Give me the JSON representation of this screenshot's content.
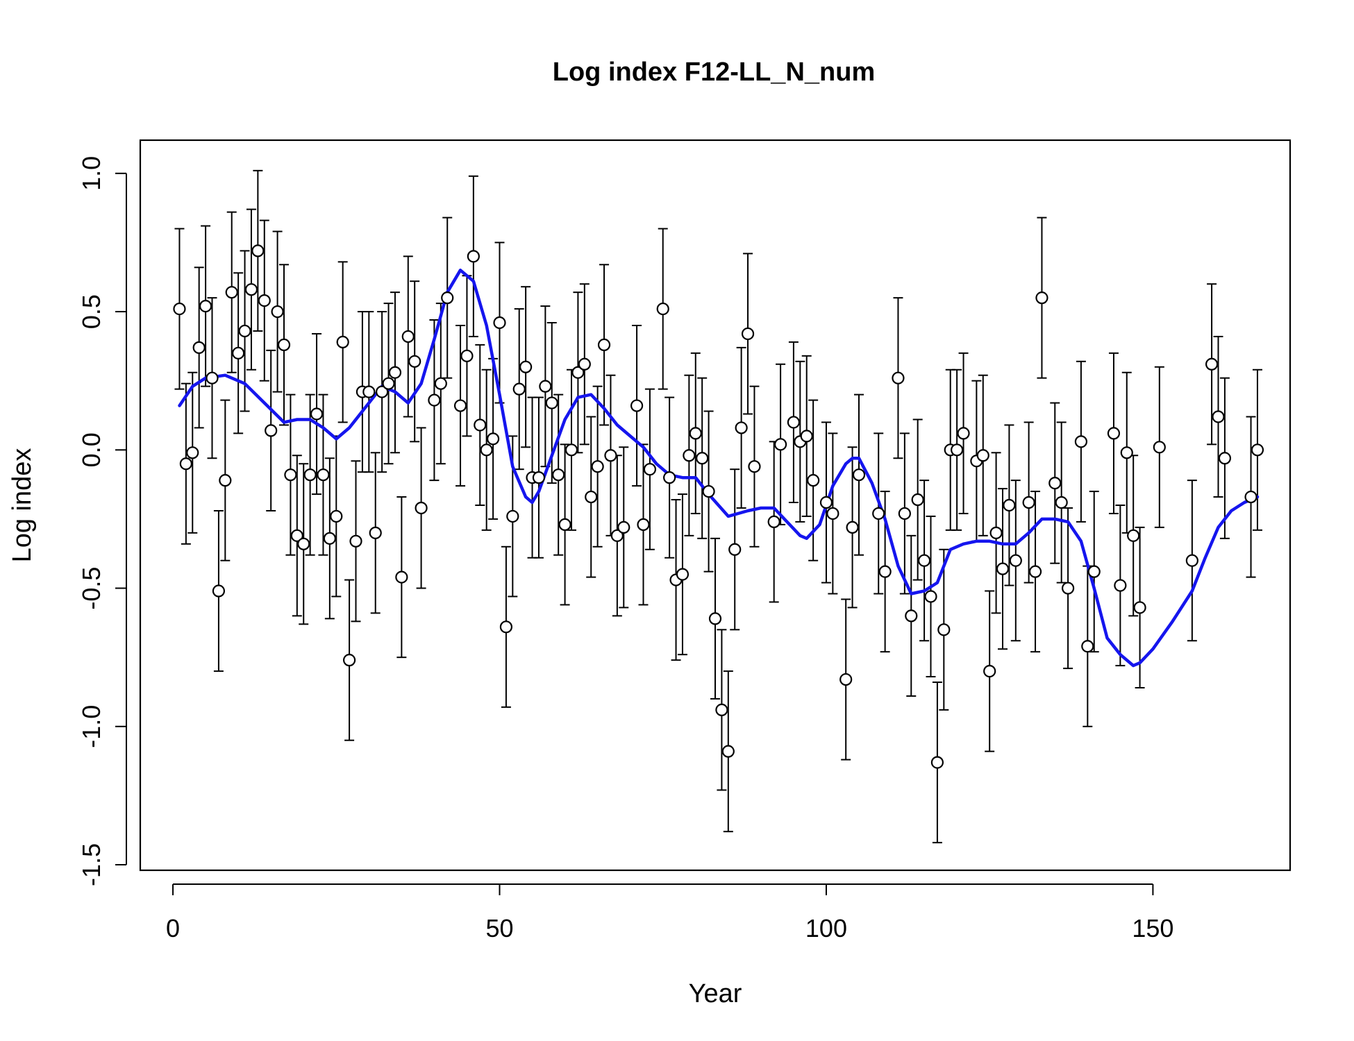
{
  "chart_data": {
    "type": "scatter",
    "title": "Log index F12-LL_N_num",
    "xlabel": "Year",
    "ylabel": "Log index",
    "xlim": [
      -5,
      171
    ],
    "ylim": [
      -1.52,
      1.12
    ],
    "x_ticks": [
      0,
      50,
      100,
      150
    ],
    "x_tick_labels": [
      "0",
      "50",
      "100",
      "150"
    ],
    "y_ticks": [
      -1.5,
      -1.0,
      -0.5,
      0.0,
      0.5,
      1.0
    ],
    "y_tick_labels": [
      "-1.5",
      "-1.0",
      "-0.5",
      "0.0",
      "0.5",
      "1.0"
    ],
    "grid": false,
    "legend": "none",
    "colors": {
      "points": "#000000",
      "fit": "#1515ee",
      "background": "#ffffff"
    },
    "series": [
      {
        "kind": "observed",
        "marker": "open-circle",
        "error_bars": true,
        "x": [
          1,
          2,
          3,
          4,
          5,
          6,
          7,
          8,
          9,
          10,
          11,
          12,
          13,
          14,
          15,
          16,
          17,
          18,
          19,
          20,
          21,
          22,
          23,
          24,
          25,
          26,
          27,
          28,
          29,
          30,
          31,
          32,
          33,
          34,
          35,
          36,
          37,
          38,
          40,
          41,
          42,
          44,
          45,
          46,
          47,
          48,
          49,
          50,
          51,
          52,
          53,
          54,
          55,
          56,
          57,
          58,
          59,
          60,
          61,
          62,
          63,
          64,
          65,
          66,
          67,
          68,
          69,
          71,
          72,
          73,
          75,
          76,
          77,
          78,
          79,
          80,
          81,
          82,
          83,
          84,
          85,
          86,
          87,
          88,
          89,
          92,
          93,
          95,
          96,
          97,
          98,
          100,
          101,
          103,
          104,
          105,
          108,
          109,
          111,
          112,
          113,
          114,
          115,
          116,
          117,
          118,
          119,
          120,
          121,
          123,
          124,
          125,
          126,
          127,
          128,
          129,
          131,
          132,
          133,
          135,
          136,
          137,
          139,
          140,
          141,
          144,
          145,
          146,
          147,
          148,
          151,
          156,
          159,
          160,
          161,
          165,
          166
        ],
        "y": [
          0.51,
          -0.05,
          -0.01,
          0.37,
          0.52,
          0.26,
          -0.51,
          -0.11,
          0.57,
          0.35,
          0.43,
          0.58,
          0.72,
          0.54,
          0.07,
          0.5,
          0.38,
          -0.09,
          -0.31,
          -0.34,
          -0.09,
          0.13,
          -0.09,
          -0.32,
          -0.24,
          0.39,
          -0.76,
          -0.33,
          0.21,
          0.21,
          -0.3,
          0.21,
          0.24,
          0.28,
          -0.46,
          0.41,
          0.32,
          -0.21,
          0.18,
          0.24,
          0.55,
          0.16,
          0.34,
          0.7,
          0.09,
          0.0,
          0.04,
          0.46,
          -0.64,
          -0.24,
          0.22,
          0.3,
          -0.1,
          -0.1,
          0.23,
          0.17,
          -0.09,
          -0.27,
          0.0,
          0.28,
          0.31,
          -0.17,
          -0.06,
          0.38,
          -0.02,
          -0.31,
          -0.28,
          0.16,
          -0.27,
          -0.07,
          0.51,
          -0.1,
          -0.47,
          -0.45,
          -0.02,
          0.06,
          -0.03,
          -0.15,
          -0.61,
          -0.94,
          -1.09,
          -0.36,
          0.08,
          0.42,
          -0.06,
          -0.26,
          0.02,
          0.1,
          0.03,
          0.05,
          -0.11,
          -0.19,
          -0.23,
          -0.83,
          -0.28,
          -0.09,
          -0.23,
          -0.44,
          0.26,
          -0.23,
          -0.6,
          -0.18,
          -0.4,
          -0.53,
          -1.13,
          -0.65,
          0.0,
          0.0,
          0.06,
          -0.04,
          -0.02,
          -0.8,
          -0.3,
          -0.43,
          -0.2,
          -0.4,
          -0.19,
          -0.44,
          0.55,
          -0.12,
          -0.19,
          -0.5,
          0.03,
          -0.71,
          -0.44,
          0.06,
          -0.49,
          -0.01,
          -0.31,
          -0.57,
          0.01,
          -0.4,
          0.31,
          0.12,
          -0.03,
          -0.17,
          0.0
        ],
        "err": 0.29
      },
      {
        "kind": "fitted",
        "line": true,
        "x": [
          1,
          3,
          5,
          8,
          11,
          14,
          17,
          19,
          21,
          23,
          25,
          27,
          30,
          32,
          34,
          36,
          38,
          40,
          42,
          44,
          46,
          48,
          50,
          52,
          54,
          55,
          56,
          58,
          60,
          62,
          64,
          66,
          68,
          70,
          72,
          74,
          76,
          78,
          80,
          82,
          85,
          88,
          90,
          92,
          94,
          96,
          97,
          99,
          101,
          103,
          104,
          105,
          107,
          109,
          111,
          113,
          115,
          117,
          119,
          121,
          123,
          125,
          127,
          129,
          131,
          133,
          135,
          137,
          139,
          141,
          143,
          145,
          147,
          148,
          150,
          153,
          156,
          158,
          160,
          162,
          164,
          166
        ],
        "y": [
          0.16,
          0.23,
          0.26,
          0.27,
          0.24,
          0.17,
          0.1,
          0.11,
          0.11,
          0.08,
          0.04,
          0.08,
          0.17,
          0.23,
          0.21,
          0.17,
          0.24,
          0.4,
          0.57,
          0.65,
          0.61,
          0.45,
          0.2,
          -0.06,
          -0.17,
          -0.19,
          -0.15,
          -0.02,
          0.11,
          0.19,
          0.2,
          0.15,
          0.09,
          0.05,
          0.01,
          -0.05,
          -0.09,
          -0.1,
          -0.1,
          -0.16,
          -0.24,
          -0.22,
          -0.21,
          -0.21,
          -0.26,
          -0.31,
          -0.32,
          -0.27,
          -0.13,
          -0.05,
          -0.03,
          -0.03,
          -0.12,
          -0.25,
          -0.42,
          -0.52,
          -0.51,
          -0.48,
          -0.36,
          -0.34,
          -0.33,
          -0.33,
          -0.34,
          -0.34,
          -0.3,
          -0.25,
          -0.25,
          -0.26,
          -0.33,
          -0.5,
          -0.68,
          -0.74,
          -0.78,
          -0.77,
          -0.72,
          -0.62,
          -0.51,
          -0.39,
          -0.28,
          -0.22,
          -0.19,
          -0.17
        ]
      }
    ]
  }
}
